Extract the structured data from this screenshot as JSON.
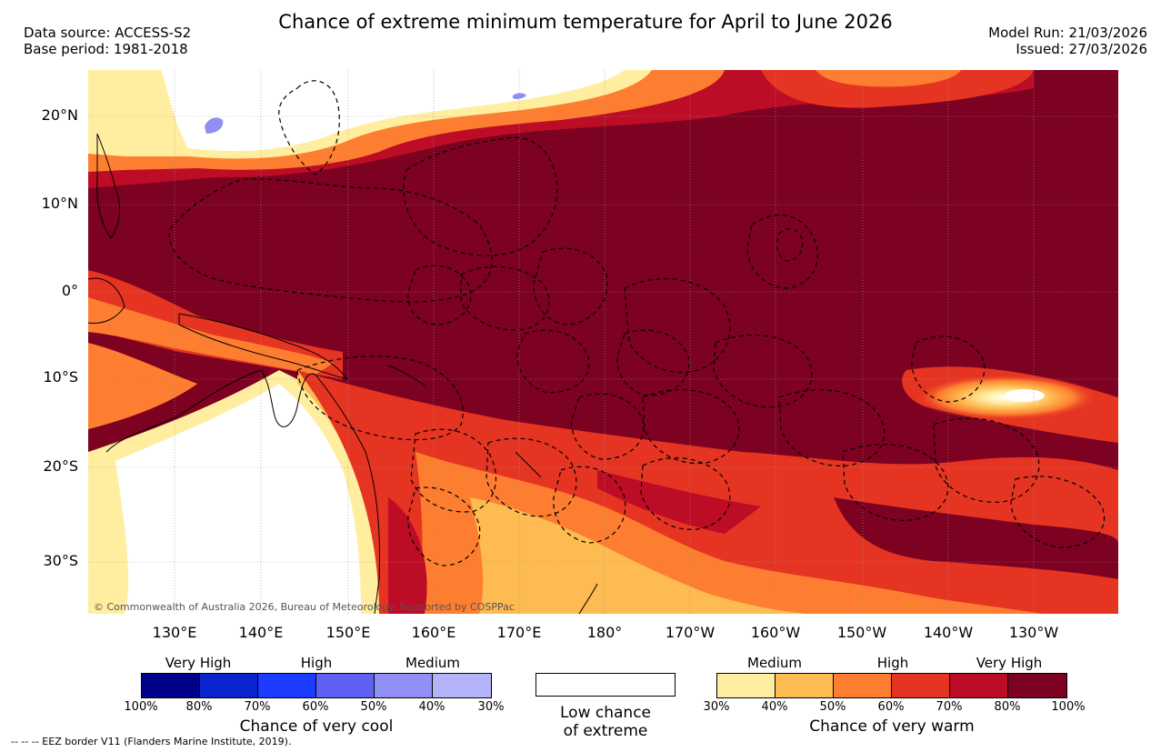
{
  "header": {
    "title": "Chance of extreme minimum temperature for April to June 2026",
    "data_source": "Data source: ACCESS-S2",
    "base_period": "Base period: 1981-2018",
    "model_run": "Model Run: 21/03/2026",
    "issued": "Issued: 27/03/2026"
  },
  "map": {
    "latitude_labels": [
      "20°N",
      "10°N",
      "0°",
      "10°S",
      "20°S",
      "30°S"
    ],
    "longitude_labels": [
      "130°E",
      "140°E",
      "150°E",
      "160°E",
      "170°E",
      "180°",
      "170°W",
      "160°W",
      "150°W",
      "140°W",
      "130°W"
    ],
    "credit": "© Commonwealth of Australia 2026, Bureau of Meteorology. Supported by COSPPac"
  },
  "legend": {
    "cool": {
      "categories": [
        "Very High",
        "High",
        "Medium"
      ],
      "ticks": [
        "100%",
        "80%",
        "70%",
        "60%",
        "50%",
        "40%",
        "30%"
      ],
      "colors": [
        "#00008b",
        "#0a24cf",
        "#1e3cff",
        "#6060f5",
        "#8f8ff5",
        "#b3b3fa"
      ],
      "title": "Chance of very cool"
    },
    "low": {
      "line1": "Low chance",
      "line2": "of extreme",
      "color": "#ffffff"
    },
    "warm": {
      "categories": [
        "Medium",
        "High",
        "Very High"
      ],
      "ticks": [
        "30%",
        "40%",
        "50%",
        "60%",
        "70%",
        "80%",
        "100%"
      ],
      "colors": [
        "#ffeda0",
        "#fdbb52",
        "#fd7e30",
        "#e63422",
        "#bd0c26",
        "#7d0120"
      ],
      "title": "Chance of very warm"
    }
  },
  "footer": {
    "eez_note": "-- -- -- EEZ border V11 (Flanders Marine Institute, 2019)."
  }
}
